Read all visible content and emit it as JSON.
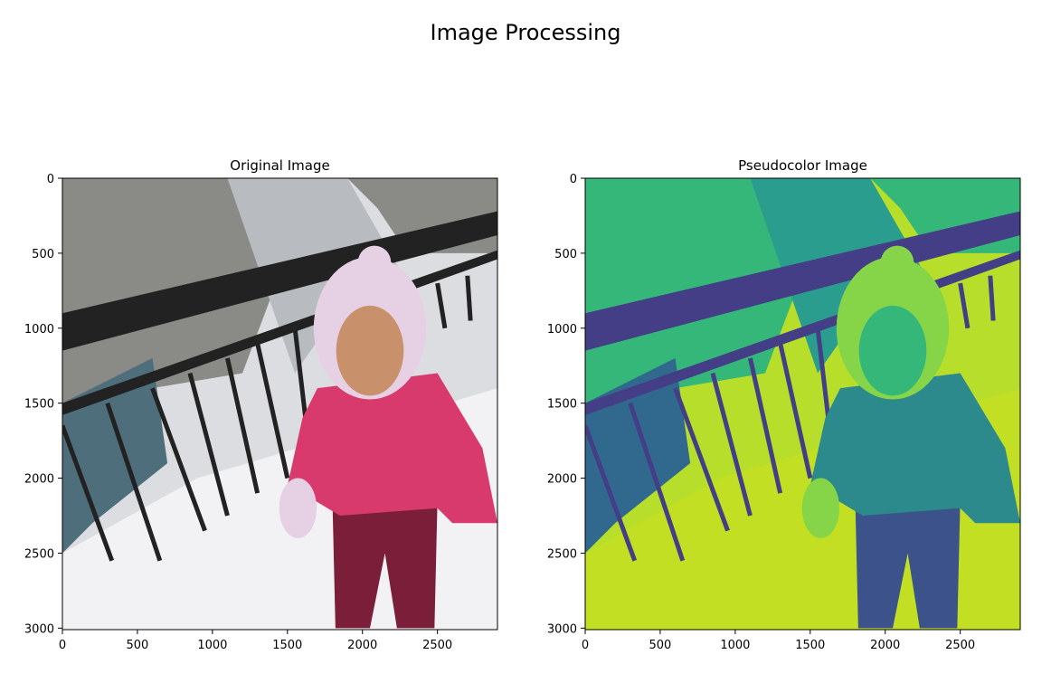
{
  "figure": {
    "suptitle": "Image Processing"
  },
  "chart_data": [
    {
      "type": "image",
      "title": "Original Image",
      "colormap": "rgb",
      "xlim": [
        0,
        2900
      ],
      "ylim": [
        3010,
        0
      ],
      "xticks": [
        0,
        500,
        1000,
        1500,
        2000,
        2500
      ],
      "yticks": [
        0,
        500,
        1000,
        1500,
        2000,
        2500,
        3000
      ],
      "colors": {
        "sky_snow": "#dcdde0",
        "pillar": "#b8bcc0",
        "railing": "#222222",
        "water": "#4f6e7c",
        "trees": "#8a8a86",
        "jacket": "#d83a6e",
        "pants": "#7a1e3a",
        "hat": "#e6d0e3",
        "face": "#c9906c",
        "snow_ground": "#f2f2f4"
      }
    },
    {
      "type": "image",
      "title": "Pseudocolor Image",
      "colormap": "viridis",
      "xlim": [
        0,
        2900
      ],
      "ylim": [
        3010,
        0
      ],
      "xticks": [
        0,
        500,
        1000,
        1500,
        2000,
        2500
      ],
      "yticks": [
        0,
        500,
        1000,
        1500,
        2000,
        2500,
        3000
      ],
      "colors": {
        "sky_snow": "#b6de2b",
        "pillar": "#2a9d8e",
        "railing": "#433e85",
        "water": "#31688e",
        "trees": "#35b779",
        "jacket": "#2c8a8c",
        "pants": "#3b528b",
        "hat": "#86d549",
        "face": "#35b779",
        "snow_ground": "#c2df23"
      }
    }
  ]
}
